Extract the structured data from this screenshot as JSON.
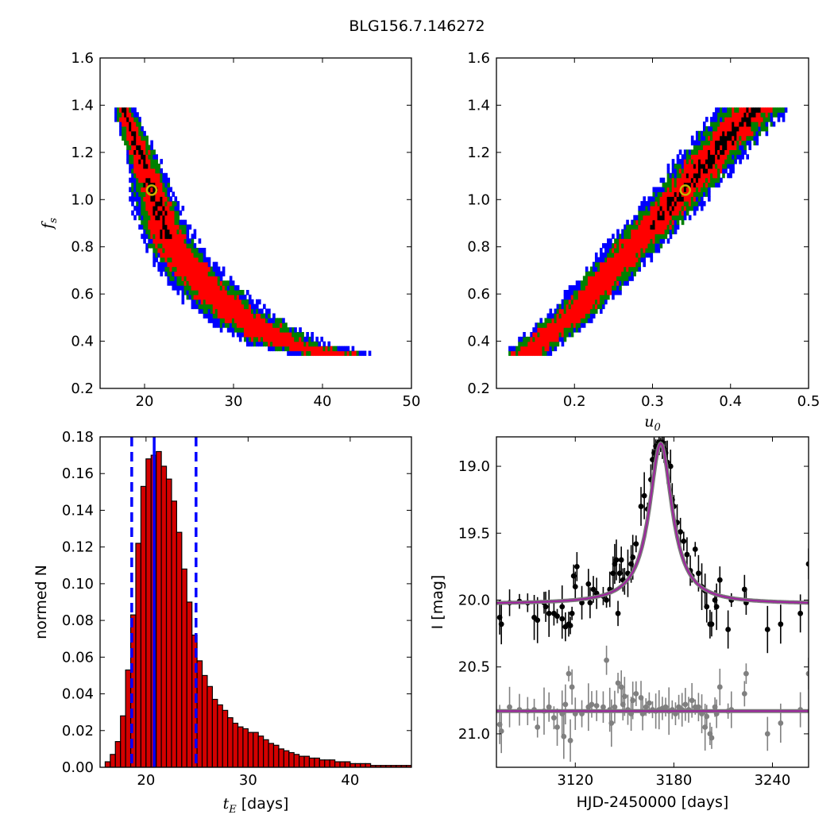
{
  "figure": {
    "title": "BLG156.7.146272"
  },
  "colors": {
    "level1": "#000000",
    "level2": "#ff0000",
    "level3": "#008000",
    "level4": "#0000ff",
    "marker": "#c8b400",
    "hist_bar": "#d40000",
    "vline": "#0000ff",
    "model": "#a020a0",
    "data_main": "#000000",
    "data_resid": "#808080"
  },
  "chart_data": [
    {
      "id": "fs-vs-tE",
      "type": "heatmap",
      "title": "",
      "xlabel": "",
      "ylabel": "f_s",
      "xlim": [
        15,
        50
      ],
      "ylim": [
        0.2,
        1.6
      ],
      "xticks": [
        "20",
        "30",
        "40",
        "50"
      ],
      "yticks": [
        "0.2",
        "0.4",
        "0.6",
        "0.8",
        "1.0",
        "1.2",
        "1.4",
        "1.6"
      ],
      "levels": [
        "black",
        "red",
        "green",
        "blue"
      ],
      "ridge": [
        [
          17.5,
          1.4
        ],
        [
          19.5,
          1.2
        ],
        [
          20.8,
          1.04
        ],
        [
          22.5,
          0.85
        ],
        [
          25.5,
          0.68
        ],
        [
          30,
          0.52
        ],
        [
          36,
          0.39
        ],
        [
          42,
          0.34
        ],
        [
          45,
          0.33
        ]
      ],
      "best_fit": {
        "x": 20.8,
        "y": 1.04
      }
    },
    {
      "id": "fs-vs-u0",
      "type": "heatmap",
      "title": "",
      "xlabel": "u_0",
      "ylabel": "",
      "xlim": [
        0.1,
        0.5
      ],
      "ylim": [
        0.2,
        1.6
      ],
      "xticks": [
        "0.2",
        "0.3",
        "0.4",
        "0.5"
      ],
      "yticks": [
        "0.2",
        "0.4",
        "0.6",
        "0.8",
        "1.0",
        "1.2",
        "1.4",
        "1.6"
      ],
      "levels": [
        "black",
        "red",
        "green",
        "blue"
      ],
      "ridge": [
        [
          0.133,
          0.33
        ],
        [
          0.2,
          0.52
        ],
        [
          0.27,
          0.78
        ],
        [
          0.34,
          1.04
        ],
        [
          0.4,
          1.28
        ],
        [
          0.435,
          1.4
        ]
      ],
      "best_fit": {
        "x": 0.342,
        "y": 1.04
      }
    },
    {
      "id": "tE-histogram",
      "type": "bar",
      "title": "",
      "xlabel": "t_E [days]",
      "ylabel": "normed N",
      "xlim": [
        15.5,
        46
      ],
      "ylim": [
        0,
        0.18
      ],
      "xticks": [
        "20",
        "30",
        "40"
      ],
      "yticks": [
        "0.00",
        "0.02",
        "0.04",
        "0.06",
        "0.08",
        "0.10",
        "0.12",
        "0.14",
        "0.16",
        "0.18"
      ],
      "bin_start": 16,
      "bin_width": 0.5,
      "values": [
        0.003,
        0.007,
        0.014,
        0.028,
        0.053,
        0.083,
        0.122,
        0.153,
        0.168,
        0.17,
        0.172,
        0.164,
        0.157,
        0.145,
        0.128,
        0.108,
        0.09,
        0.072,
        0.058,
        0.05,
        0.044,
        0.037,
        0.034,
        0.031,
        0.027,
        0.024,
        0.022,
        0.021,
        0.019,
        0.019,
        0.017,
        0.015,
        0.013,
        0.012,
        0.01,
        0.009,
        0.008,
        0.007,
        0.006,
        0.006,
        0.005,
        0.005,
        0.004,
        0.004,
        0.004,
        0.003,
        0.003,
        0.003,
        0.002,
        0.002,
        0.002,
        0.002,
        0.001,
        0.001,
        0.001,
        0.001,
        0.001,
        0.001,
        0.001,
        0.001
      ],
      "vlines": [
        {
          "x": 18.6,
          "style": "dashed"
        },
        {
          "x": 20.8,
          "style": "solid"
        },
        {
          "x": 24.9,
          "style": "dashed"
        }
      ]
    },
    {
      "id": "light-curve",
      "type": "scatter",
      "title": "",
      "xlabel": "HJD-2450000 [days]",
      "ylabel": "I [mag]",
      "xlim": [
        3072,
        3262
      ],
      "ylim": [
        21.25,
        18.78
      ],
      "xticks": [
        "3120",
        "3180",
        "3240"
      ],
      "yticks": [
        "19.0",
        "19.5",
        "20.0",
        "20.5",
        "21.0"
      ],
      "model": {
        "t0": 3172,
        "baseline": 20.03,
        "peak": 18.83,
        "tau": 8.5,
        "resid_level": 20.83
      },
      "series": [
        {
          "role": "data",
          "points": [
            [
              3074,
              20.13
            ],
            [
              3075,
              20.18
            ],
            [
              3080,
              20.02
            ],
            [
              3086,
              20.01
            ],
            [
              3091,
              20.02
            ],
            [
              3095,
              20.13
            ],
            [
              3097,
              20.15
            ],
            [
              3101,
              20.02
            ],
            [
              3102,
              20.05
            ],
            [
              3104,
              20.1
            ],
            [
              3107,
              20.1
            ],
            [
              3109,
              20.12
            ],
            [
              3112,
              20.05
            ],
            [
              3112,
              20.14
            ],
            [
              3114,
              20.2
            ],
            [
              3116,
              20.18
            ],
            [
              3117,
              20.19
            ],
            [
              3118,
              20.1
            ],
            [
              3119,
              19.82
            ],
            [
              3120,
              19.9
            ],
            [
              3121,
              19.75
            ],
            [
              3124,
              20.02
            ],
            [
              3128,
              19.88
            ],
            [
              3129,
              20.02
            ],
            [
              3131,
              19.92
            ],
            [
              3133,
              19.95
            ],
            [
              3137,
              19.97
            ],
            [
              3139,
              20.0
            ],
            [
              3141,
              19.92
            ],
            [
              3143,
              19.8
            ],
            [
              3144,
              19.73
            ],
            [
              3145,
              19.7
            ],
            [
              3146,
              20.1
            ],
            [
              3147,
              19.8
            ],
            [
              3148,
              19.7
            ],
            [
              3149,
              19.85
            ],
            [
              3150,
              19.86
            ],
            [
              3152,
              19.8
            ],
            [
              3154,
              19.73
            ],
            [
              3155,
              19.68
            ],
            [
              3157,
              19.58
            ],
            [
              3160,
              19.3
            ],
            [
              3162,
              19.22
            ],
            [
              3164,
              19.32
            ],
            [
              3166,
              19.1
            ],
            [
              3167,
              18.95
            ],
            [
              3168,
              18.9
            ],
            [
              3169,
              18.85
            ],
            [
              3170,
              18.86
            ],
            [
              3171,
              18.82
            ],
            [
              3172,
              18.84
            ],
            [
              3173,
              18.82
            ],
            [
              3174,
              18.87
            ],
            [
              3175,
              18.9
            ],
            [
              3176,
              18.97
            ],
            [
              3178,
              19.0
            ],
            [
              3179,
              19.25
            ],
            [
              3180,
              19.3
            ],
            [
              3182,
              19.42
            ],
            [
              3184,
              19.49
            ],
            [
              3186,
              19.56
            ],
            [
              3188,
              19.66
            ],
            [
              3190,
              19.78
            ],
            [
              3191,
              19.82
            ],
            [
              3193,
              19.62
            ],
            [
              3195,
              19.8
            ],
            [
              3197,
              19.9
            ],
            [
              3199,
              19.93
            ],
            [
              3200,
              20.05
            ],
            [
              3202,
              20.18
            ],
            [
              3203,
              20.18
            ],
            [
              3205,
              20.0
            ],
            [
              3206,
              20.05
            ],
            [
              3208,
              19.85
            ],
            [
              3213,
              20.22
            ],
            [
              3215,
              20.0
            ],
            [
              3223,
              19.92
            ],
            [
              3224,
              20.02
            ],
            [
              3245,
              20.18
            ],
            [
              3257,
              20.1
            ],
            [
              3262,
              19.73
            ],
            [
              3237,
              20.22
            ]
          ]
        },
        {
          "role": "residual",
          "points": [
            [
              3074,
              20.93
            ],
            [
              3075,
              20.98
            ],
            [
              3080,
              20.8
            ],
            [
              3086,
              20.82
            ],
            [
              3091,
              20.83
            ],
            [
              3095,
              20.82
            ],
            [
              3097,
              20.95
            ],
            [
              3101,
              20.83
            ],
            [
              3104,
              20.8
            ],
            [
              3107,
              20.88
            ],
            [
              3109,
              20.95
            ],
            [
              3112,
              20.85
            ],
            [
              3113,
              21.02
            ],
            [
              3114,
              20.78
            ],
            [
              3116,
              20.55
            ],
            [
              3117,
              21.05
            ],
            [
              3118,
              20.65
            ],
            [
              3120,
              20.85
            ],
            [
              3124,
              20.85
            ],
            [
              3128,
              20.8
            ],
            [
              3130,
              20.78
            ],
            [
              3133,
              20.79
            ],
            [
              3137,
              20.8
            ],
            [
              3139,
              20.45
            ],
            [
              3141,
              20.82
            ],
            [
              3142,
              20.92
            ],
            [
              3144,
              20.8
            ],
            [
              3146,
              20.62
            ],
            [
              3148,
              20.65
            ],
            [
              3149,
              20.78
            ],
            [
              3150,
              20.72
            ],
            [
              3152,
              20.82
            ],
            [
              3154,
              20.85
            ],
            [
              3155,
              20.75
            ],
            [
              3157,
              20.7
            ],
            [
              3160,
              20.73
            ],
            [
              3161,
              20.85
            ],
            [
              3163,
              20.8
            ],
            [
              3165,
              20.77
            ],
            [
              3167,
              20.82
            ],
            [
              3169,
              20.83
            ],
            [
              3171,
              20.82
            ],
            [
              3173,
              20.81
            ],
            [
              3175,
              20.8
            ],
            [
              3177,
              20.83
            ],
            [
              3179,
              20.82
            ],
            [
              3181,
              20.85
            ],
            [
              3183,
              20.8
            ],
            [
              3185,
              20.82
            ],
            [
              3187,
              20.78
            ],
            [
              3189,
              20.82
            ],
            [
              3191,
              20.75
            ],
            [
              3193,
              20.8
            ],
            [
              3195,
              20.8
            ],
            [
              3197,
              20.85
            ],
            [
              3199,
              20.95
            ],
            [
              3200,
              20.87
            ],
            [
              3202,
              21.0
            ],
            [
              3203,
              21.03
            ],
            [
              3205,
              20.8
            ],
            [
              3206,
              20.85
            ],
            [
              3208,
              20.65
            ],
            [
              3213,
              20.83
            ],
            [
              3215,
              20.82
            ],
            [
              3223,
              20.7
            ],
            [
              3224,
              20.55
            ],
            [
              3237,
              21.0
            ],
            [
              3245,
              20.92
            ],
            [
              3257,
              20.82
            ],
            [
              3262,
              20.55
            ]
          ]
        }
      ]
    }
  ]
}
